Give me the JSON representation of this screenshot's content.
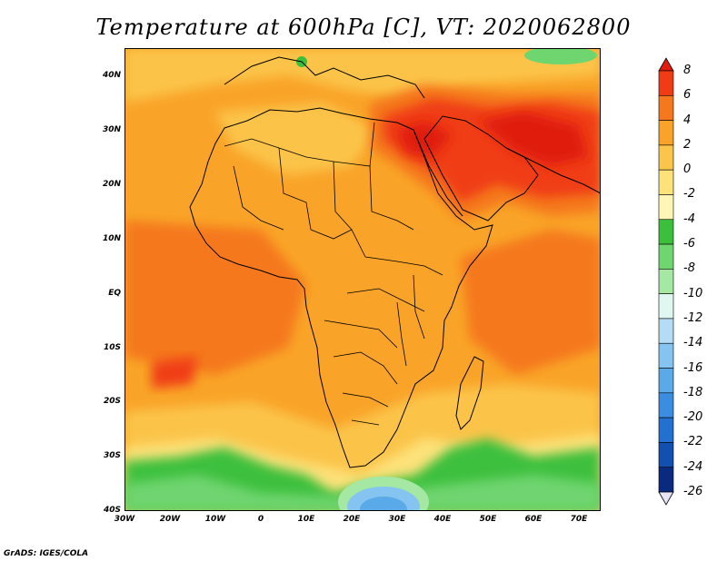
{
  "title": "Temperature at 600hPa [C], VT: 2020062800",
  "credit": "GrADS: IGES/COLA",
  "map": {
    "region": "Africa and Middle East",
    "projection": "lat-lon",
    "lon_range": [
      -30,
      75
    ],
    "lat_range": [
      -40,
      45
    ],
    "lat_labels": [
      "40N",
      "30N",
      "20N",
      "10N",
      "EQ",
      "10S",
      "20S",
      "30S",
      "40S"
    ],
    "lon_labels": [
      "30W",
      "20W",
      "10W",
      "0",
      "10E",
      "20E",
      "30E",
      "40E",
      "50E",
      "60E",
      "70E"
    ]
  },
  "colorbar": {
    "labels": [
      "8",
      "6",
      "4",
      "2",
      "0",
      "-2",
      "-4",
      "-6",
      "-8",
      "-10",
      "-12",
      "-14",
      "-16",
      "-18",
      "-20",
      "-22",
      "-24",
      "-26"
    ],
    "colors": [
      "#e01b0f",
      "#f03c14",
      "#f5781c",
      "#f9a428",
      "#fbc44a",
      "#fde27a",
      "#fff5b5",
      "#3cc03c",
      "#6fd56f",
      "#a4e8a4",
      "#dff7f0",
      "#b4ddf5",
      "#85c4f0",
      "#5aa9e8",
      "#3a8de0",
      "#2270d0",
      "#1250b0",
      "#0a2a80",
      "#e8e4f5"
    ]
  },
  "chart_data": {
    "type": "heatmap",
    "title": "Temperature at 600hPa [C], VT: 2020062800",
    "xlabel": "",
    "ylabel": "",
    "x_ticks": [
      "30W",
      "20W",
      "10W",
      "0",
      "10E",
      "20E",
      "30E",
      "40E",
      "50E",
      "60E",
      "70E"
    ],
    "y_ticks": [
      "40N",
      "30N",
      "20N",
      "10N",
      "EQ",
      "10S",
      "20S",
      "30S",
      "40S"
    ],
    "xlim": [
      -30,
      75
    ],
    "ylim": [
      -40,
      45
    ],
    "units": "C",
    "color_levels": [
      8,
      6,
      4,
      2,
      0,
      -2,
      -4,
      -6,
      -8,
      -10,
      -12,
      -14,
      -16,
      -18,
      -20,
      -22,
      -24,
      -26
    ],
    "regions": [
      {
        "name": "Arabian Peninsula / Persian Gulf",
        "approx_value": 7
      },
      {
        "name": "Eastern Sahara / Egypt",
        "approx_value": 6
      },
      {
        "name": "Sahel and Central Africa",
        "approx_value": 3
      },
      {
        "name": "South Atlantic near 20S",
        "approx_value": 5
      },
      {
        "name": "Southern Ocean south of 30S",
        "approx_value": -6
      },
      {
        "name": "Cold pool near 35S 30E",
        "approx_value": -16
      }
    ]
  }
}
